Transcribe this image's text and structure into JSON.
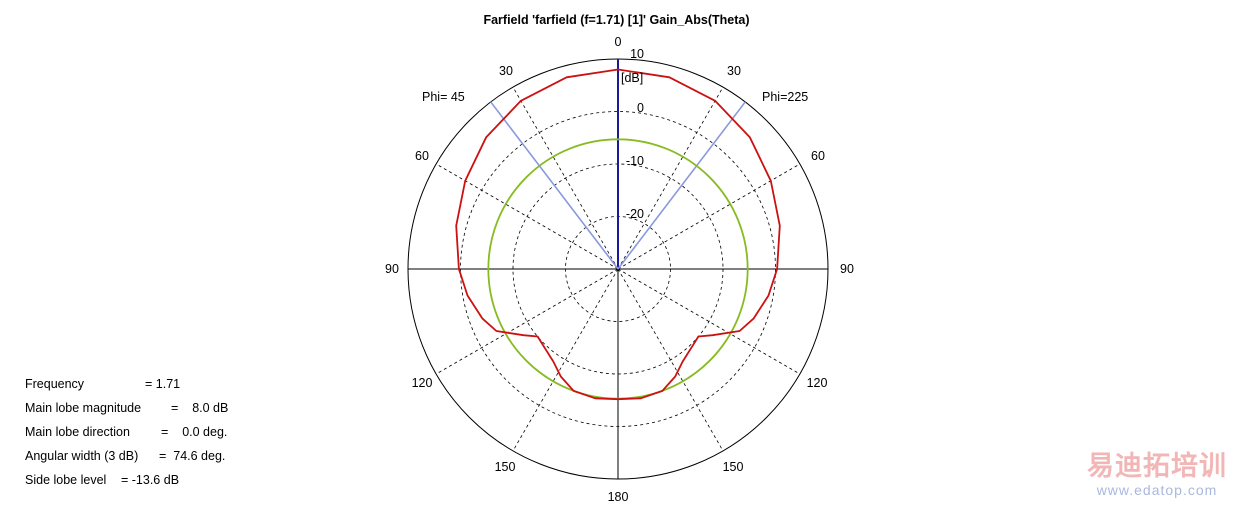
{
  "chart_data": {
    "type": "polar",
    "title": "Farfield 'farfield (f=1.71) [1]' Gain_Abs(Theta)",
    "unit_label": "[dB]",
    "radial_range_db": [
      -30,
      10
    ],
    "radial_ticks": [
      "10",
      "0",
      "-10",
      "-20"
    ],
    "angle_labels": [
      "0",
      "30",
      "60",
      "90",
      "120",
      "150",
      "180",
      "150",
      "120",
      "90",
      "60",
      "30"
    ],
    "phi_labels": {
      "left": "Phi= 45",
      "right": "Phi=225"
    },
    "series": [
      {
        "color": "#cc1111",
        "points": [
          {
            "theta": 0,
            "db": 8.0
          },
          {
            "theta": 15,
            "db": 7.8
          },
          {
            "theta": 30,
            "db": 7.0
          },
          {
            "theta": 45,
            "db": 5.5
          },
          {
            "theta": 60,
            "db": 3.6
          },
          {
            "theta": 75,
            "db": 1.9
          },
          {
            "theta": 90,
            "db": 0.3
          },
          {
            "theta": 100,
            "db": -0.9
          },
          {
            "theta": 110,
            "db": -2.5
          },
          {
            "theta": 117,
            "db": -4.0
          },
          {
            "theta": 125,
            "db": -8.0
          },
          {
            "theta": 130,
            "db": -10.0
          },
          {
            "theta": 137,
            "db": -9.5
          },
          {
            "theta": 145,
            "db": -8.5
          },
          {
            "theta": 152,
            "db": -6.8
          },
          {
            "theta": 160,
            "db": -5.3
          },
          {
            "theta": 170,
            "db": -5.0
          },
          {
            "theta": 180,
            "db": -5.2
          }
        ]
      },
      {
        "color": "#88bb22",
        "constant_db": -5.3
      }
    ],
    "main_lobe_direction_deg": 0,
    "beam_half_width_deg": 37.3
  },
  "info": [
    {
      "label": "Frequency",
      "value": "= 1.71"
    },
    {
      "label": "Main lobe magnitude",
      "value": "=    8.0 dB"
    },
    {
      "label": "Main lobe direction",
      "value": "=    0.0 deg."
    },
    {
      "label": "Angular width (3 dB)",
      "value": "=  74.6 deg."
    },
    {
      "label": "Side lobe level",
      "value": "= -13.6 dB"
    }
  ],
  "watermark": {
    "cn": "易迪拓培训",
    "url": "www.edatop.com"
  }
}
